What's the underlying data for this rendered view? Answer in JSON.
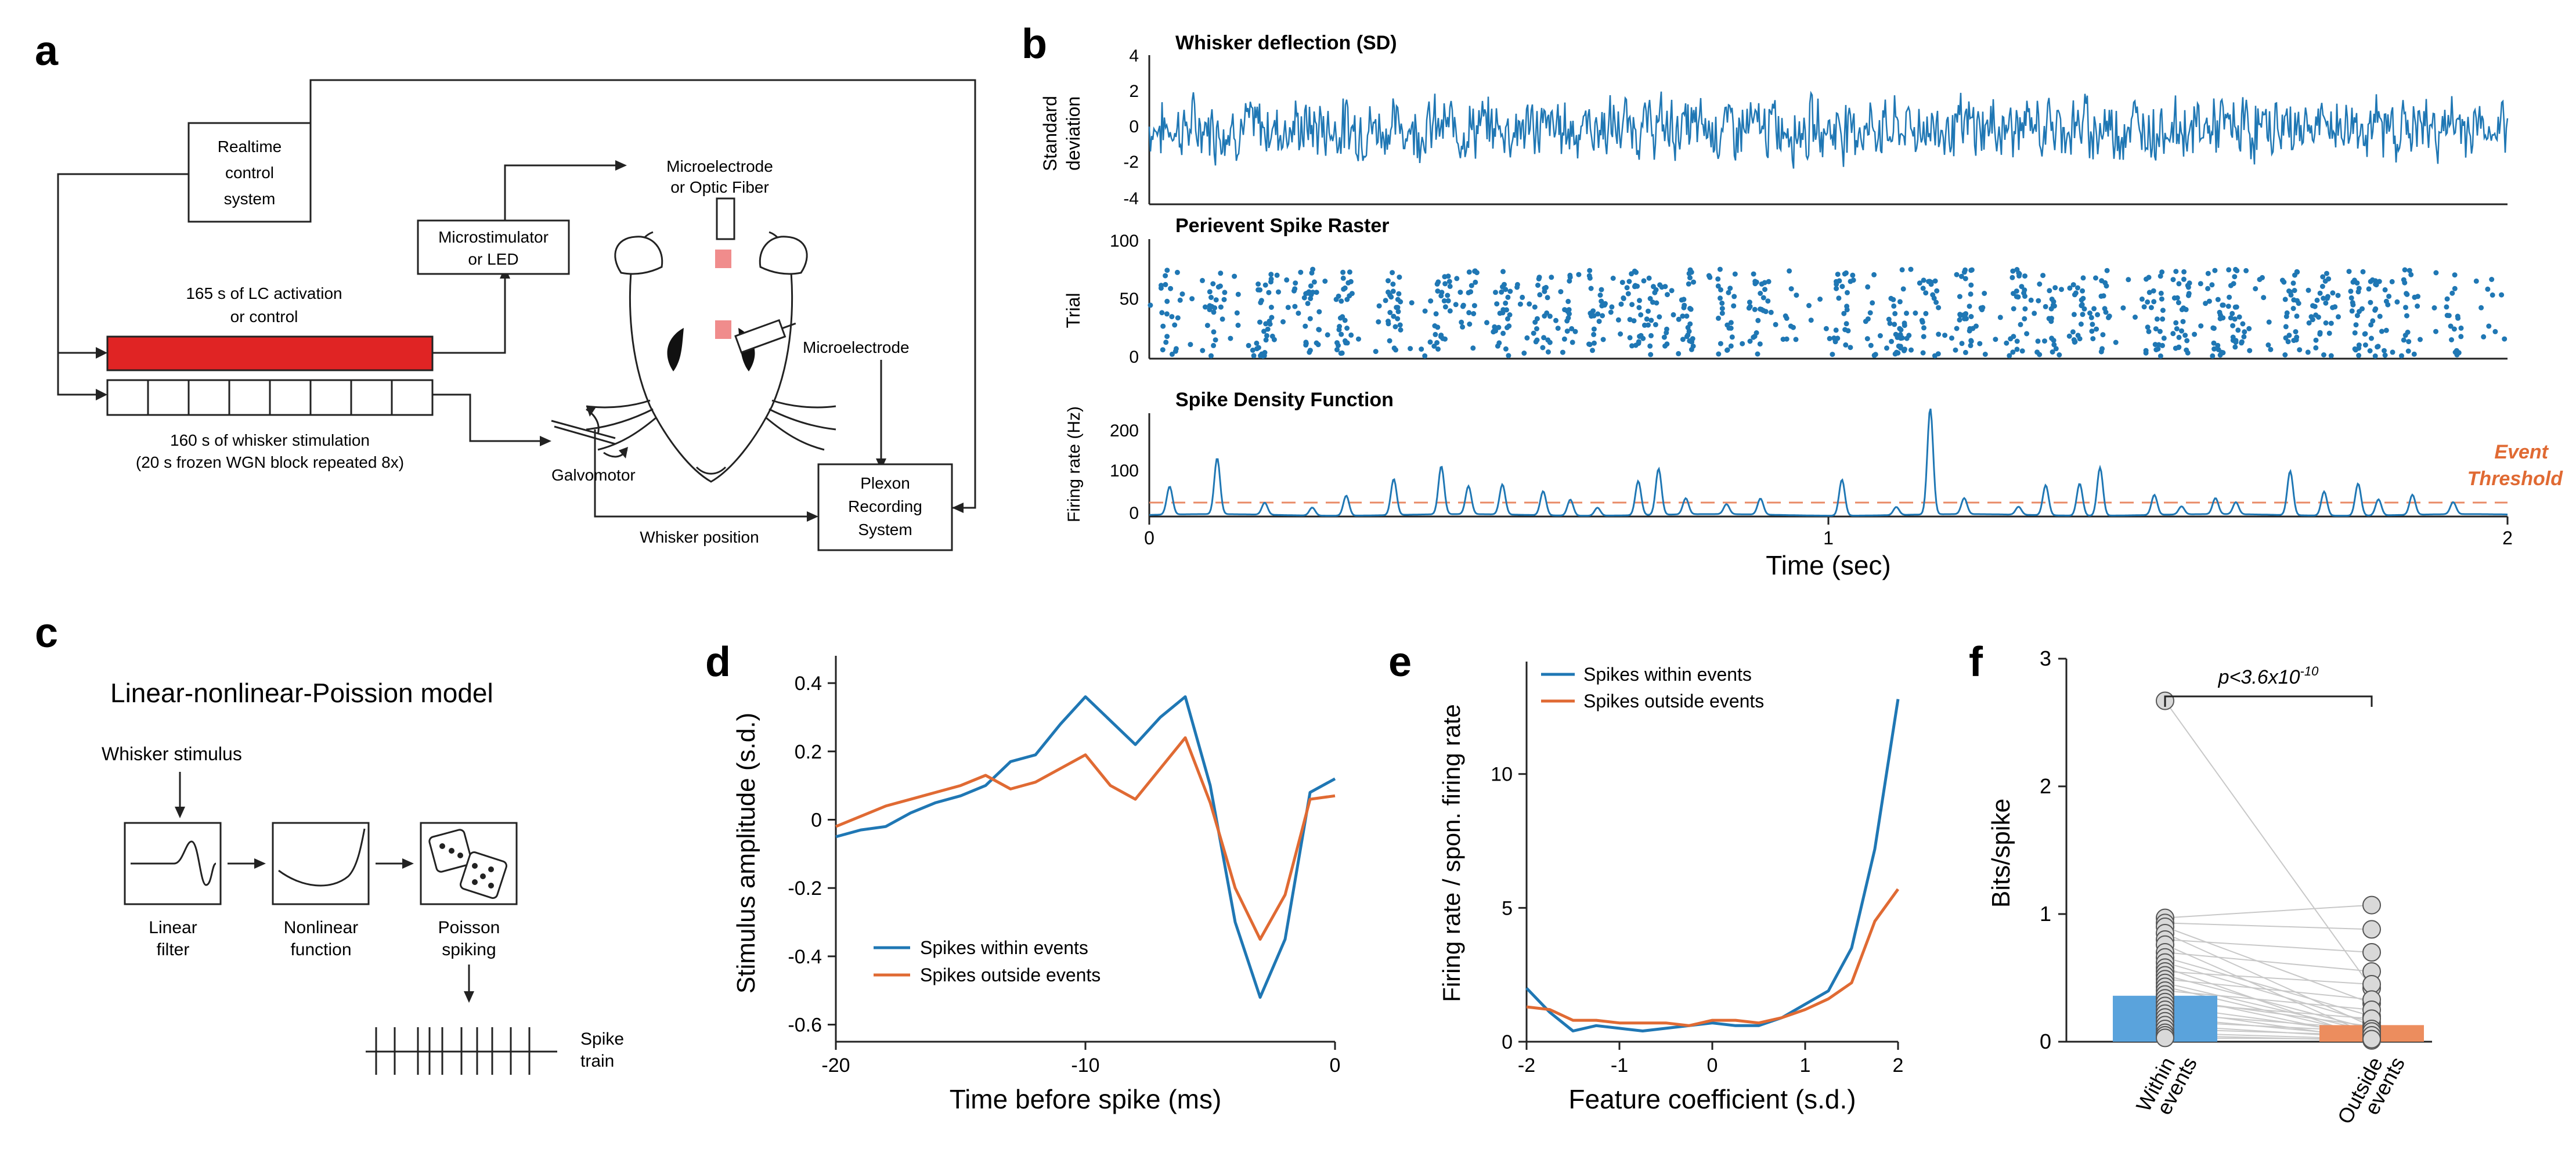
{
  "colors": {
    "blue": "#1f77b4",
    "orange": "#e06a33",
    "red": "#e02424",
    "threshold": "#e88a66",
    "axis": "#222222",
    "grey_line": "#c8c8c8"
  },
  "panel_a": {
    "letter": "a",
    "realtime": [
      "Realtime",
      "control",
      "system"
    ],
    "microstim": [
      "Microstimulator",
      "or LED"
    ],
    "electrode_top": [
      "Microelectrode",
      "or Optic Fiber"
    ],
    "lc_label": [
      "165 s of LC activation",
      "or control"
    ],
    "whisker_stim": [
      "160 s of whisker stimulation",
      "(20 s frozen WGN block repeated 8x)"
    ],
    "microelectrode": "Microelectrode",
    "galvomotor": "Galvomotor",
    "plexon": [
      "Plexon",
      "Recording",
      "System"
    ],
    "whisker_position": "Whisker position"
  },
  "panel_b": {
    "letter": "b",
    "deflection_title": "Whisker deflection (SD)",
    "deflection_ylabel": [
      "Standard",
      "deviation"
    ],
    "deflection_ticks": [
      "4",
      "2",
      "0",
      "-2",
      "-4"
    ],
    "raster_title": "Perievent Spike Raster",
    "raster_ylabel": "Trial",
    "raster_ticks": [
      "100",
      "50",
      "0"
    ],
    "sdf_title": "Spike Density Function",
    "sdf_ylabel": "Firing rate (Hz)",
    "sdf_ticks": [
      "200",
      "100",
      "0"
    ],
    "threshold_label": [
      "Event",
      "Threshold"
    ],
    "x_ticks": [
      "0",
      "1",
      "2"
    ],
    "xlabel": "Time (sec)"
  },
  "panel_c": {
    "letter": "c",
    "title": "Linear-nonlinear-Poission model",
    "stimulus": "Whisker stimulus",
    "linear": [
      "Linear",
      "filter"
    ],
    "nonlinear": [
      "Nonlinear",
      "function"
    ],
    "poisson": [
      "Poisson",
      "spiking"
    ],
    "spike_train": [
      "Spike",
      "train"
    ]
  },
  "chart_data": [
    {
      "id": "d",
      "type": "line",
      "letter": "d",
      "xlabel": "Time before spike (ms)",
      "ylabel": "Stimulus amplitude (s.d.)",
      "xlim": [
        -20,
        0
      ],
      "ylim": [
        -0.65,
        0.48
      ],
      "x_ticks": [
        -20,
        -10,
        0
      ],
      "x_tick_labels": [
        "-20",
        "-10",
        "0"
      ],
      "y_ticks": [
        0.4,
        0.2,
        0,
        -0.2,
        -0.4,
        -0.6
      ],
      "y_tick_labels": [
        "0.4",
        "0.2",
        "0",
        "-0.2",
        "-0.4",
        "-0.6"
      ],
      "legend_position": "lower-left",
      "series": [
        {
          "name": "Spikes within events",
          "color": "#1f77b4",
          "x": [
            -20,
            -19,
            -18,
            -17,
            -16,
            -15,
            -14,
            -13,
            -12,
            -11,
            -10,
            -9,
            -8,
            -7,
            -6,
            -5,
            -4,
            -3,
            -2,
            -1,
            0
          ],
          "y": [
            -0.05,
            -0.03,
            -0.02,
            0.02,
            0.05,
            0.07,
            0.1,
            0.17,
            0.19,
            0.28,
            0.36,
            0.29,
            0.22,
            0.3,
            0.36,
            0.1,
            -0.3,
            -0.52,
            -0.35,
            0.08,
            0.12
          ]
        },
        {
          "name": "Spikes outside events",
          "color": "#e06a33",
          "x": [
            -20,
            -19,
            -18,
            -17,
            -16,
            -15,
            -14,
            -13,
            -12,
            -11,
            -10,
            -9,
            -8,
            -7,
            -6,
            -5,
            -4,
            -3,
            -2,
            -1,
            0
          ],
          "y": [
            -0.02,
            0.01,
            0.04,
            0.06,
            0.08,
            0.1,
            0.13,
            0.09,
            0.11,
            0.15,
            0.19,
            0.1,
            0.06,
            0.15,
            0.24,
            0.05,
            -0.2,
            -0.35,
            -0.22,
            0.06,
            0.07
          ]
        }
      ]
    },
    {
      "id": "e",
      "type": "line",
      "letter": "e",
      "xlabel": "Feature coefficient (s.d.)",
      "ylabel": "Firing rate / spon. firing rate",
      "xlim": [
        -2,
        2
      ],
      "ylim": [
        0,
        14.2
      ],
      "x_ticks": [
        -2,
        -1,
        0,
        1,
        2
      ],
      "x_tick_labels": [
        "-2",
        "-1",
        "0",
        "1",
        "2"
      ],
      "y_ticks": [
        0,
        5,
        10
      ],
      "y_tick_labels": [
        "0",
        "5",
        "10"
      ],
      "legend_position": "top-left",
      "series": [
        {
          "name": "Spikes within events",
          "color": "#1f77b4",
          "x": [
            -2,
            -1.75,
            -1.5,
            -1.25,
            -1,
            -0.75,
            -0.5,
            -0.25,
            0,
            0.25,
            0.5,
            0.75,
            1,
            1.25,
            1.5,
            1.75,
            2
          ],
          "y": [
            2.0,
            1.1,
            0.4,
            0.6,
            0.5,
            0.4,
            0.5,
            0.6,
            0.7,
            0.6,
            0.6,
            0.9,
            1.4,
            1.9,
            3.5,
            7.2,
            12.8
          ]
        },
        {
          "name": "Spikes outside events",
          "color": "#e06a33",
          "x": [
            -2,
            -1.75,
            -1.5,
            -1.25,
            -1,
            -0.75,
            -0.5,
            -0.25,
            0,
            0.25,
            0.5,
            0.75,
            1,
            1.25,
            1.5,
            1.75,
            2
          ],
          "y": [
            1.3,
            1.2,
            0.8,
            0.8,
            0.7,
            0.7,
            0.7,
            0.6,
            0.8,
            0.8,
            0.7,
            0.9,
            1.2,
            1.6,
            2.2,
            4.5,
            5.7
          ]
        }
      ]
    },
    {
      "id": "f",
      "type": "bar",
      "letter": "f",
      "ylabel": "Bits/spike",
      "ylim": [
        0,
        3
      ],
      "y_ticks": [
        0,
        1,
        2,
        3
      ],
      "y_tick_labels": [
        "0",
        "1",
        "2",
        "3"
      ],
      "categories": [
        "Within events",
        "Outside events"
      ],
      "category_lines": [
        [
          "Within",
          "events"
        ],
        [
          "Outside",
          "events"
        ]
      ],
      "values": [
        0.36,
        0.13
      ],
      "errors": [
        0.04,
        0.02
      ],
      "bar_colors": [
        "#5aa3dc",
        "#ec8d5e"
      ],
      "significance": "p<3.6x10",
      "significance_exp": "-10",
      "paired": [
        [
          2.67,
          0.42
        ],
        [
          0.97,
          1.07
        ],
        [
          0.93,
          0.88
        ],
        [
          0.9,
          0.3
        ],
        [
          0.85,
          0.12
        ],
        [
          0.8,
          0.7
        ],
        [
          0.76,
          0.05
        ],
        [
          0.7,
          0.55
        ],
        [
          0.66,
          0.2
        ],
        [
          0.62,
          0.15
        ],
        [
          0.58,
          0.02
        ],
        [
          0.55,
          0.45
        ],
        [
          0.52,
          0.1
        ],
        [
          0.49,
          0.33
        ],
        [
          0.46,
          0.08
        ],
        [
          0.43,
          0.05
        ],
        [
          0.4,
          0.25
        ],
        [
          0.37,
          0.03
        ],
        [
          0.34,
          0.12
        ],
        [
          0.31,
          0.18
        ],
        [
          0.28,
          0.06
        ],
        [
          0.25,
          0.02
        ],
        [
          0.22,
          0.1
        ],
        [
          0.19,
          0.04
        ],
        [
          0.16,
          0.08
        ],
        [
          0.13,
          0.03
        ],
        [
          0.1,
          0.05
        ],
        [
          0.07,
          0.02
        ],
        [
          0.05,
          0.01
        ],
        [
          0.03,
          0.02
        ]
      ]
    }
  ]
}
